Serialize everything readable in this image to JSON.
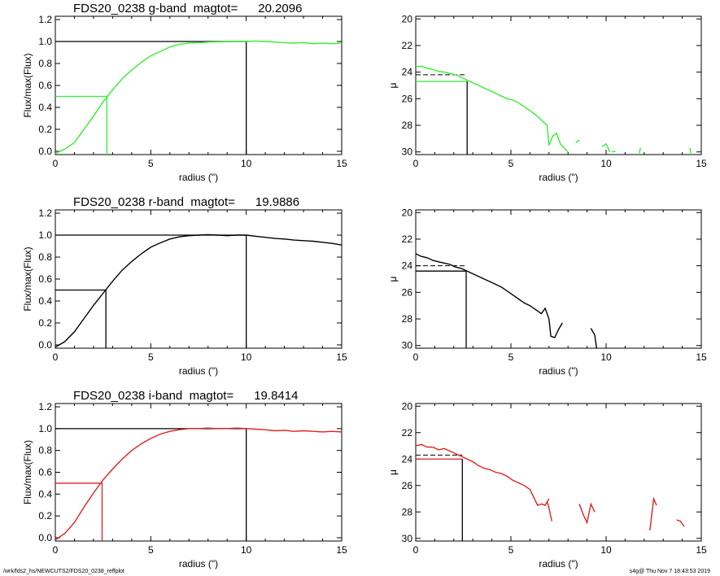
{
  "footer": {
    "left": "/wrk/fds2_hs/NEWCUTS2/FDS20_0238_reffplot",
    "right": "s4g@  Thu Nov  7 18:43:53 2019"
  },
  "chart_data": [
    {
      "type": "line",
      "panel": "growth-g",
      "title": "FDS20_0238 g-band  magtot=      20.2096",
      "xlabel": "radius (\")",
      "ylabel": "Flux/max(Flux)",
      "xlim": [
        0,
        15
      ],
      "ylim": [
        -0.03,
        1.23
      ],
      "xticks": [
        0,
        5,
        10,
        15
      ],
      "yticks": [
        0.0,
        0.2,
        0.4,
        0.6,
        0.8,
        1.0,
        1.2
      ],
      "ytick_labels": [
        "0.0",
        "0.2",
        "0.4",
        "0.6",
        "0.8",
        "1.0",
        "1.2"
      ],
      "color": "#33ee33",
      "series": [
        {
          "x": [
            0,
            0.5,
            1,
            1.5,
            2,
            2.5,
            3,
            3.5,
            4,
            4.5,
            5,
            5.5,
            6,
            6.5,
            7,
            7.5,
            8,
            8.5,
            9,
            9.5,
            10,
            10.5,
            11,
            11.5,
            12,
            12.5,
            13,
            13.5,
            14,
            14.5,
            15
          ],
          "y": [
            -0.02,
            0.02,
            0.08,
            0.2,
            0.32,
            0.45,
            0.56,
            0.66,
            0.74,
            0.81,
            0.87,
            0.91,
            0.95,
            0.975,
            0.985,
            0.99,
            0.995,
            0.997,
            0.999,
            1.0,
            1.0,
            1.005,
            1.0,
            0.995,
            0.99,
            0.985,
            0.99,
            0.98,
            0.985,
            0.98,
            0.985
          ]
        }
      ],
      "guides": {
        "half_radius": 2.7,
        "half_value": 0.5,
        "half_color": "#33ee33",
        "total_radius": 10,
        "total_value": 1.0
      }
    },
    {
      "type": "line",
      "panel": "profile-g",
      "title": "",
      "xlabel": "radius (\")",
      "ylabel": "μ",
      "xlim": [
        0,
        15
      ],
      "ylim": [
        30.2,
        19.8
      ],
      "xticks": [
        0,
        5,
        10,
        15
      ],
      "yticks": [
        20,
        22,
        24,
        26,
        28,
        30
      ],
      "ytick_labels": [
        "20",
        "22",
        "24",
        "26",
        "28",
        "30"
      ],
      "color": "#33ee33",
      "series": [
        {
          "x": [
            0,
            0.3,
            0.6,
            0.9,
            1.2,
            1.5,
            1.8,
            2.1,
            2.4,
            2.7,
            3.0,
            3.3,
            3.6,
            3.9,
            4.2,
            4.5,
            4.8,
            5.1,
            5.4,
            5.7,
            6.0,
            6.3,
            6.6,
            6.9,
            7.0,
            7.2,
            7.4,
            7.6,
            7.8,
            8.0
          ],
          "y": [
            23.6,
            23.55,
            23.7,
            23.8,
            23.95,
            24.0,
            24.1,
            24.2,
            24.4,
            24.6,
            24.8,
            25.0,
            25.2,
            25.4,
            25.6,
            25.8,
            26.0,
            26.1,
            26.3,
            26.6,
            26.9,
            27.2,
            27.6,
            28.0,
            29.5,
            28.8,
            28.6,
            29.4,
            29.7,
            30.0
          ]
        },
        {
          "x": [
            8.4,
            8.6
          ],
          "y": [
            29.3,
            29.1
          ]
        },
        {
          "x": [
            9.8,
            10.0,
            10.2
          ],
          "y": [
            29.6,
            29.4,
            30.0
          ]
        },
        {
          "x": [
            10.3,
            10.5
          ],
          "y": [
            30.0,
            29.95
          ]
        },
        {
          "x": [
            11.75,
            11.8
          ],
          "y": [
            30.1,
            29.7
          ]
        },
        {
          "x": [
            14.4,
            14.45
          ],
          "y": [
            29.7,
            30.1
          ]
        }
      ],
      "guides": {
        "solid_mu": 24.7,
        "dashed_mu": 24.2,
        "eff_radius": 2.7,
        "line_color": "#33ee33"
      }
    },
    {
      "type": "line",
      "panel": "growth-r",
      "title": "FDS20_0238 r-band  magtot=      19.9886",
      "xlabel": "radius (\")",
      "ylabel": "Flux/max(Flux)",
      "xlim": [
        0,
        15
      ],
      "ylim": [
        -0.03,
        1.23
      ],
      "xticks": [
        0,
        5,
        10,
        15
      ],
      "yticks": [
        0.0,
        0.2,
        0.4,
        0.6,
        0.8,
        1.0,
        1.2
      ],
      "ytick_labels": [
        "0.0",
        "0.2",
        "0.4",
        "0.6",
        "0.8",
        "1.0",
        "1.2"
      ],
      "color": "#000000",
      "series": [
        {
          "x": [
            0,
            0.5,
            1,
            1.5,
            2,
            2.5,
            3,
            3.5,
            4,
            4.5,
            5,
            5.5,
            6,
            6.5,
            7,
            7.5,
            8,
            8.5,
            9,
            9.5,
            10,
            10.5,
            11,
            11.5,
            12,
            12.5,
            13,
            13.5,
            14,
            14.5,
            15
          ],
          "y": [
            -0.02,
            0.03,
            0.12,
            0.24,
            0.36,
            0.47,
            0.58,
            0.68,
            0.76,
            0.83,
            0.89,
            0.93,
            0.965,
            0.985,
            0.995,
            1.0,
            1.005,
            1.0,
            0.995,
            1.0,
            1.0,
            0.99,
            0.98,
            0.97,
            0.965,
            0.955,
            0.95,
            0.945,
            0.935,
            0.925,
            0.91
          ]
        }
      ],
      "guides": {
        "half_radius": 2.65,
        "half_value": 0.5,
        "half_color": "#000000",
        "total_radius": 10,
        "total_value": 1.0
      }
    },
    {
      "type": "line",
      "panel": "profile-r",
      "title": "",
      "xlabel": "radius (\")",
      "ylabel": "μ",
      "xlim": [
        0,
        15
      ],
      "ylim": [
        30.2,
        19.8
      ],
      "xticks": [
        0,
        5,
        10,
        15
      ],
      "yticks": [
        20,
        22,
        24,
        26,
        28,
        30
      ],
      "ytick_labels": [
        "20",
        "22",
        "24",
        "26",
        "28",
        "30"
      ],
      "color": "#000000",
      "series": [
        {
          "x": [
            0,
            0.3,
            0.6,
            0.9,
            1.2,
            1.5,
            1.8,
            2.1,
            2.4,
            2.7,
            3.0,
            3.3,
            3.6,
            3.9,
            4.2,
            4.5,
            4.8,
            5.1,
            5.4,
            5.7,
            6.0,
            6.3,
            6.6,
            6.8,
            7.0,
            7.1,
            7.3,
            7.5,
            7.7
          ],
          "y": [
            23.1,
            23.3,
            23.4,
            23.6,
            23.7,
            23.8,
            23.9,
            24.1,
            24.2,
            24.4,
            24.6,
            24.8,
            25.0,
            25.2,
            25.4,
            25.6,
            25.9,
            26.2,
            26.5,
            26.8,
            27.0,
            27.3,
            27.6,
            27.2,
            28.0,
            29.3,
            29.4,
            28.8,
            28.3
          ]
        },
        {
          "x": [
            9.2,
            9.4,
            9.5
          ],
          "y": [
            28.7,
            29.2,
            30.2
          ]
        }
      ],
      "guides": {
        "solid_mu": 24.4,
        "dashed_mu": 24.0,
        "eff_radius": 2.65,
        "line_color": "#000000"
      }
    },
    {
      "type": "line",
      "panel": "growth-i",
      "title": "FDS20_0238 i-band  magtot=      19.8414",
      "xlabel": "radius (\")",
      "ylabel": "Flux/max(Flux)",
      "xlim": [
        0,
        15
      ],
      "ylim": [
        -0.03,
        1.23
      ],
      "xticks": [
        0,
        5,
        10,
        15
      ],
      "yticks": [
        0.0,
        0.2,
        0.4,
        0.6,
        0.8,
        1.0,
        1.2
      ],
      "ytick_labels": [
        "0.0",
        "0.2",
        "0.4",
        "0.6",
        "0.8",
        "1.0",
        "1.2"
      ],
      "color": "#dd2222",
      "series": [
        {
          "x": [
            0,
            0.5,
            1,
            1.5,
            2,
            2.5,
            3,
            3.5,
            4,
            4.5,
            5,
            5.5,
            6,
            6.5,
            7,
            7.5,
            8,
            8.5,
            9,
            9.5,
            10,
            10.5,
            11,
            11.5,
            12,
            12.5,
            13,
            13.5,
            14,
            14.5,
            15
          ],
          "y": [
            -0.02,
            0.04,
            0.14,
            0.28,
            0.41,
            0.53,
            0.63,
            0.72,
            0.8,
            0.86,
            0.91,
            0.95,
            0.975,
            0.99,
            1.0,
            1.0,
            1.005,
            1.0,
            1.0,
            1.005,
            1.0,
            0.995,
            0.99,
            0.98,
            0.985,
            0.975,
            0.98,
            0.975,
            0.97,
            0.975,
            0.97
          ]
        }
      ],
      "guides": {
        "half_radius": 2.45,
        "half_value": 0.5,
        "half_color": "#dd2222",
        "total_radius": 10,
        "total_value": 1.0
      }
    },
    {
      "type": "line",
      "panel": "profile-i",
      "title": "",
      "xlabel": "radius (\")",
      "ylabel": "μ",
      "xlim": [
        0,
        15
      ],
      "ylim": [
        30.2,
        19.8
      ],
      "xticks": [
        0,
        5,
        10,
        15
      ],
      "yticks": [
        20,
        22,
        24,
        26,
        28,
        30
      ],
      "ytick_labels": [
        "20",
        "22",
        "24",
        "26",
        "28",
        "30"
      ],
      "color": "#dd2222",
      "series": [
        {
          "x": [
            0,
            0.3,
            0.6,
            0.9,
            1.2,
            1.5,
            1.8,
            2.1,
            2.4,
            2.7,
            3.0,
            3.3,
            3.6,
            3.9,
            4.2,
            4.5,
            4.8,
            5.1,
            5.4,
            5.7,
            6.0,
            6.2,
            6.4,
            6.6,
            6.8,
            7.0
          ],
          "y": [
            23.0,
            22.9,
            23.1,
            23.1,
            23.3,
            23.2,
            23.4,
            23.6,
            23.8,
            24.0,
            24.2,
            24.5,
            24.7,
            24.8,
            25.0,
            25.1,
            25.3,
            25.6,
            25.8,
            26.0,
            26.3,
            26.9,
            27.5,
            27.4,
            27.5,
            27.0
          ]
        },
        {
          "x": [
            6.9,
            7.0,
            7.15
          ],
          "y": [
            27.2,
            27.7,
            28.7
          ]
        },
        {
          "x": [
            8.6,
            8.8,
            9.0,
            9.2,
            9.4
          ],
          "y": [
            27.4,
            28.2,
            28.8,
            27.4,
            28.0
          ]
        },
        {
          "x": [
            12.3,
            12.5,
            12.65
          ],
          "y": [
            29.4,
            27.0,
            27.5
          ]
        },
        {
          "x": [
            13.7,
            13.9,
            14.1
          ],
          "y": [
            28.6,
            28.7,
            29.1
          ]
        }
      ],
      "guides": {
        "solid_mu": 24.0,
        "dashed_mu": 23.7,
        "eff_radius": 2.45,
        "line_color": "#dd2222"
      }
    }
  ]
}
